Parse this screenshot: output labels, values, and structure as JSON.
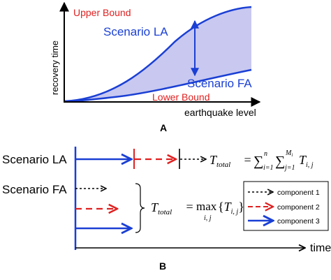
{
  "panel_a": {
    "upper_bound_label": "Upper Bound",
    "lower_bound_label": "Lower Bound",
    "scenario_la_label": "Scenario LA",
    "scenario_fa_label": "Scenario FA",
    "y_axis_label": "recovery time",
    "x_axis_label": "earthquake level",
    "panel_letter": "A"
  },
  "panel_b": {
    "row_la_label": "Scenario LA",
    "row_fa_label": "Scenario FA",
    "time_label": "time",
    "panel_letter": "B",
    "formula_la": {
      "lhs_T": "T",
      "lhs_sub": "total",
      "equals": " = ",
      "sum1": "∑",
      "sum1_top": "n",
      "sum1_bottom": "i=1",
      "sum2": "∑",
      "sum2_top": "M",
      "sum2_top_sub": "i",
      "sum2_bottom": "j=1",
      "term_T": "T",
      "term_sub": "i, j"
    },
    "formula_fa": {
      "lhs_T": "T",
      "lhs_sub": "total",
      "equals": " = ",
      "max": "max",
      "max_sub": "i, j",
      "arg_open": "{",
      "arg_T": "T",
      "arg_sub": "i, j",
      "arg_close": "}"
    },
    "legend": {
      "items": [
        {
          "label": "component 1",
          "color": "#000000",
          "style": "dotted"
        },
        {
          "label": "component 2",
          "color": "#e02020",
          "style": "dashed"
        },
        {
          "label": "component 3",
          "color": "#1a3fd4",
          "style": "solid"
        }
      ]
    }
  },
  "colors": {
    "blue": "#1a3fd4",
    "red": "#e02020",
    "fill": "#c8c8f0",
    "black": "#000000"
  }
}
